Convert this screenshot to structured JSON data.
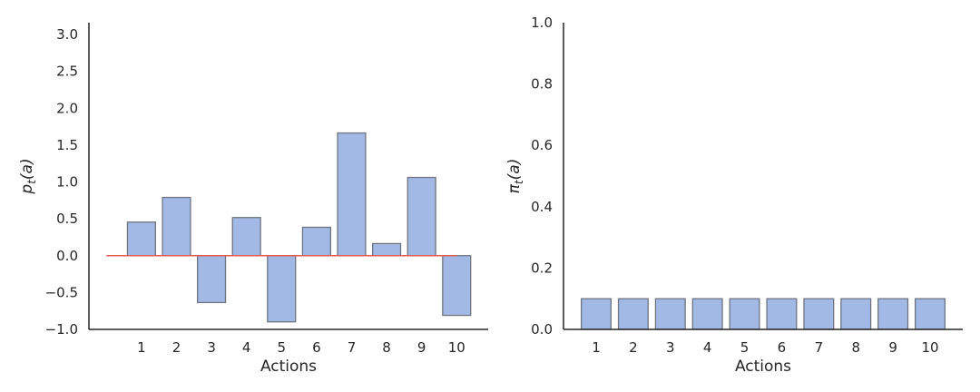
{
  "chart_data": [
    {
      "type": "bar",
      "title": "",
      "xlabel": "Actions",
      "ylabel": "p_t(a)",
      "ylabel_parts": {
        "base": "p",
        "sub": "t",
        "arg": "(a)"
      },
      "categories": [
        1,
        2,
        3,
        4,
        5,
        6,
        7,
        8,
        9,
        10
      ],
      "values": [
        0.455,
        0.79,
        -0.636,
        0.517,
        -0.898,
        0.385,
        1.664,
        0.164,
        1.061,
        -0.81
      ],
      "xlim": [
        -0.5,
        10.9
      ],
      "ylim": [
        -1.0,
        3.16
      ],
      "yticks": [
        -1.0,
        -0.5,
        0.0,
        0.5,
        1.0,
        1.5,
        2.0,
        2.5,
        3.0
      ],
      "ytick_labels": [
        "−1.0",
        "−0.5",
        "0.0",
        "0.5",
        "1.0",
        "1.5",
        "2.0",
        "2.5",
        "3.0"
      ],
      "reference_line": {
        "y": 0,
        "x_from": 0,
        "x_to": 10,
        "color": "#e05a50"
      },
      "grid": false,
      "bar_color": "#a2b9e6",
      "edge_color": "#6e7480"
    },
    {
      "type": "bar",
      "title": "",
      "xlabel": "Actions",
      "ylabel": "π_t(a)",
      "ylabel_parts": {
        "base": "π",
        "sub": "t",
        "arg": "(a)"
      },
      "categories": [
        1,
        2,
        3,
        4,
        5,
        6,
        7,
        8,
        9,
        10
      ],
      "values": [
        0.1,
        0.1,
        0.1,
        0.1,
        0.1,
        0.1,
        0.1,
        0.1,
        0.1,
        0.1
      ],
      "xlim": [
        0.12,
        10.88
      ],
      "ylim": [
        0.0,
        1.0
      ],
      "yticks": [
        0.0,
        0.2,
        0.4,
        0.6,
        0.8,
        1.0
      ],
      "ytick_labels": [
        "0.0",
        "0.2",
        "0.4",
        "0.6",
        "0.8",
        "1.0"
      ],
      "grid": false,
      "bar_color": "#a2b9e6",
      "edge_color": "#6e7480"
    }
  ]
}
